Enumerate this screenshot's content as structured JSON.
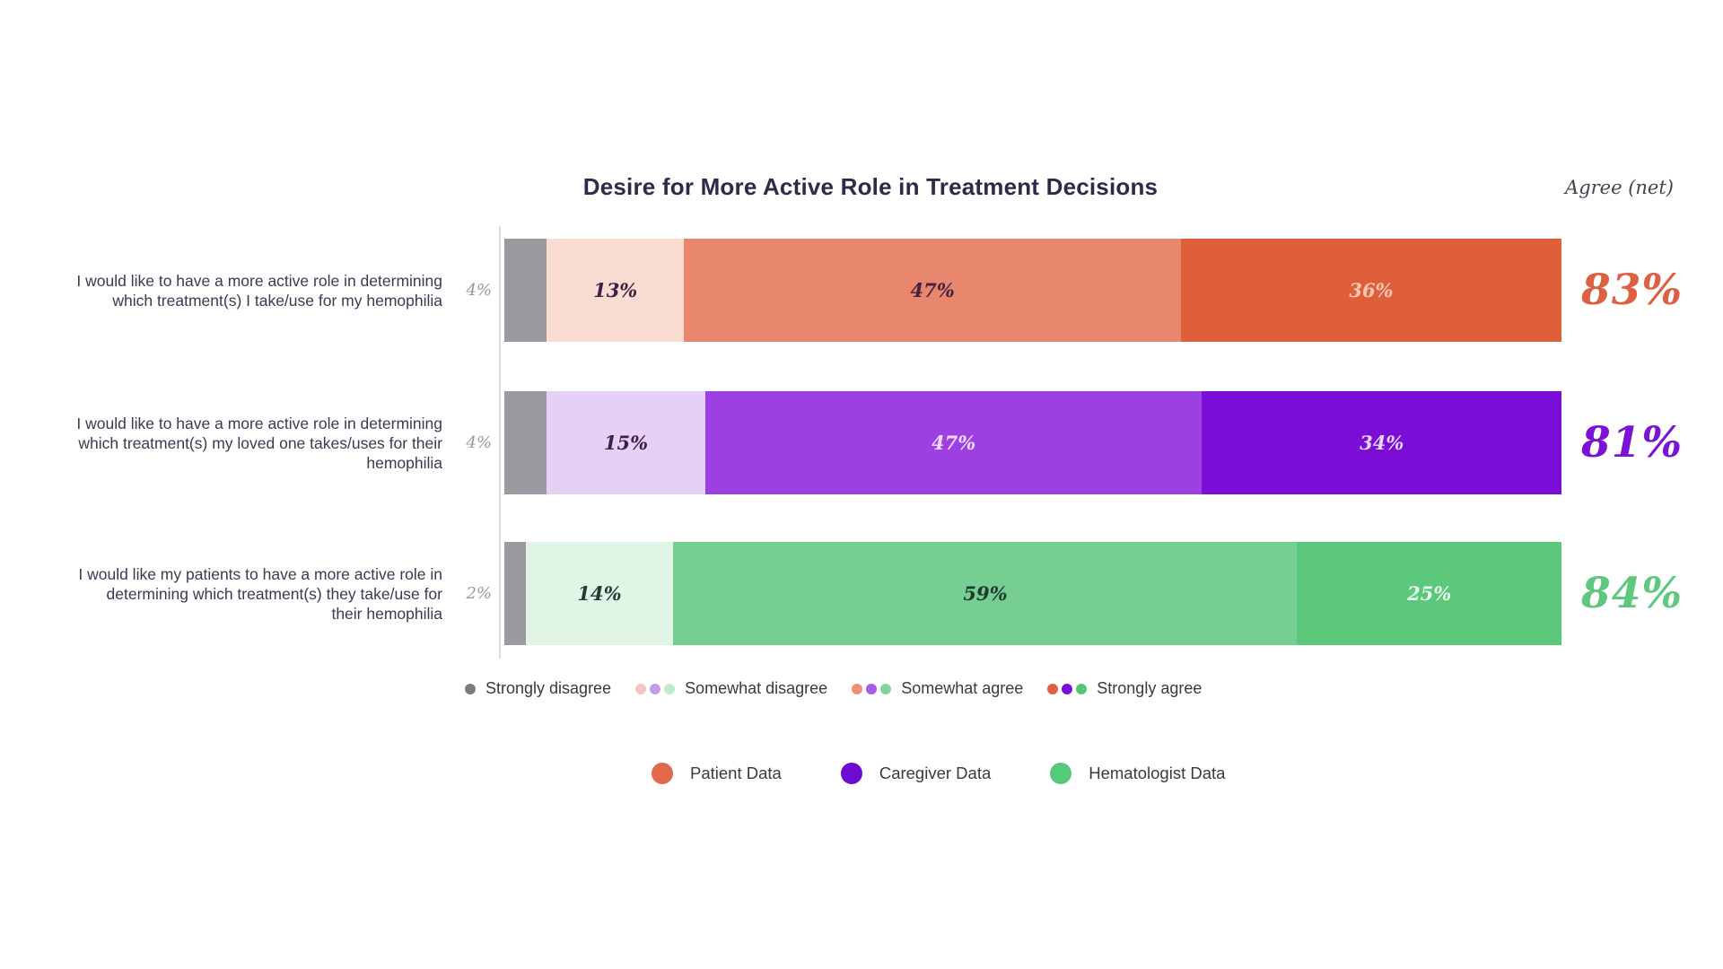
{
  "title": "Desire for More Active Role in Treatment Decisions",
  "agree_net_header": "Agree (net)",
  "chart_data": {
    "type": "bar",
    "orientation": "horizontal",
    "stacked": true,
    "unit": "percent",
    "x_range": [
      0,
      100
    ],
    "grid": false,
    "response_scale": [
      "Strongly disagree",
      "Somewhat disagree",
      "Somewhat agree",
      "Strongly agree"
    ],
    "rows": [
      {
        "group": "Patient Data",
        "label": "I would like to have a more active role in determining which treatment(s) I take/use for my hemophilia",
        "outside_value": "4%",
        "segments": [
          {
            "name": "Strongly disagree",
            "value": 4,
            "display": "",
            "color": "#9b9aa0",
            "text_color": ""
          },
          {
            "name": "Somewhat disagree",
            "value": 13,
            "display": "13%",
            "color": "#fadcd2",
            "text_color": "#3d2142"
          },
          {
            "name": "Somewhat agree",
            "value": 47,
            "display": "47%",
            "color": "#e8876e",
            "text_color": "#45233f"
          },
          {
            "name": "Strongly agree",
            "value": 36,
            "display": "36%",
            "color": "#e05f3b",
            "text_color": "#f8c8b6"
          }
        ],
        "agree_net": {
          "display": "83%",
          "color": "#dc6142"
        }
      },
      {
        "group": "Caregiver Data",
        "label": "I would like to have a more active role in determining which treatment(s) my loved one takes/uses for their hemophilia",
        "outside_value": "4%",
        "segments": [
          {
            "name": "Strongly disagree",
            "value": 4,
            "display": "",
            "color": "#9b9aa0",
            "text_color": ""
          },
          {
            "name": "Somewhat disagree",
            "value": 15,
            "display": "15%",
            "color": "#e7d0f5",
            "text_color": "#3d2142"
          },
          {
            "name": "Somewhat agree",
            "value": 47,
            "display": "47%",
            "color": "#9c40e2",
            "text_color": "#f0dbff"
          },
          {
            "name": "Strongly agree",
            "value": 34,
            "display": "34%",
            "color": "#7a0dd6",
            "text_color": "#ebd7fb"
          }
        ],
        "agree_net": {
          "display": "81%",
          "color": "#7b13d6"
        }
      },
      {
        "group": "Hematologist Data",
        "label": "I would like my patients to have a more active role in determining which treatment(s) they take/use for their hemophilia",
        "outside_value": "2%",
        "segments": [
          {
            "name": "Strongly disagree",
            "value": 2,
            "display": "",
            "color": "#9b9aa0",
            "text_color": ""
          },
          {
            "name": "Somewhat disagree",
            "value": 14,
            "display": "14%",
            "color": "#e1f5e7",
            "text_color": "#243d33"
          },
          {
            "name": "Somewhat agree",
            "value": 59,
            "display": "59%",
            "color": "#77ce92",
            "text_color": "#213a31"
          },
          {
            "name": "Strongly agree",
            "value": 25,
            "display": "25%",
            "color": "#5cc87c",
            "text_color": "#eafaef"
          }
        ],
        "agree_net": {
          "display": "84%",
          "color": "#5fc87e"
        }
      }
    ]
  },
  "legend_scale": {
    "items": [
      {
        "label": "Strongly disagree",
        "dots": [
          "#7c7b82"
        ]
      },
      {
        "label": "Somewhat disagree",
        "dots": [
          "#efc8be",
          "#c49be8",
          "#c2e8cd"
        ]
      },
      {
        "label": "Somewhat agree",
        "dots": [
          "#ec9077",
          "#a55be3",
          "#83d49a"
        ]
      },
      {
        "label": "Strongly agree",
        "dots": [
          "#df5f3b",
          "#7b0fd6",
          "#57c675"
        ]
      }
    ]
  },
  "legend_groups": {
    "items": [
      {
        "label": "Patient Data",
        "color": "#e06a4b"
      },
      {
        "label": "Caregiver Data",
        "color": "#6e0bd3"
      },
      {
        "label": "Hematologist Data",
        "color": "#57c97b"
      }
    ]
  }
}
